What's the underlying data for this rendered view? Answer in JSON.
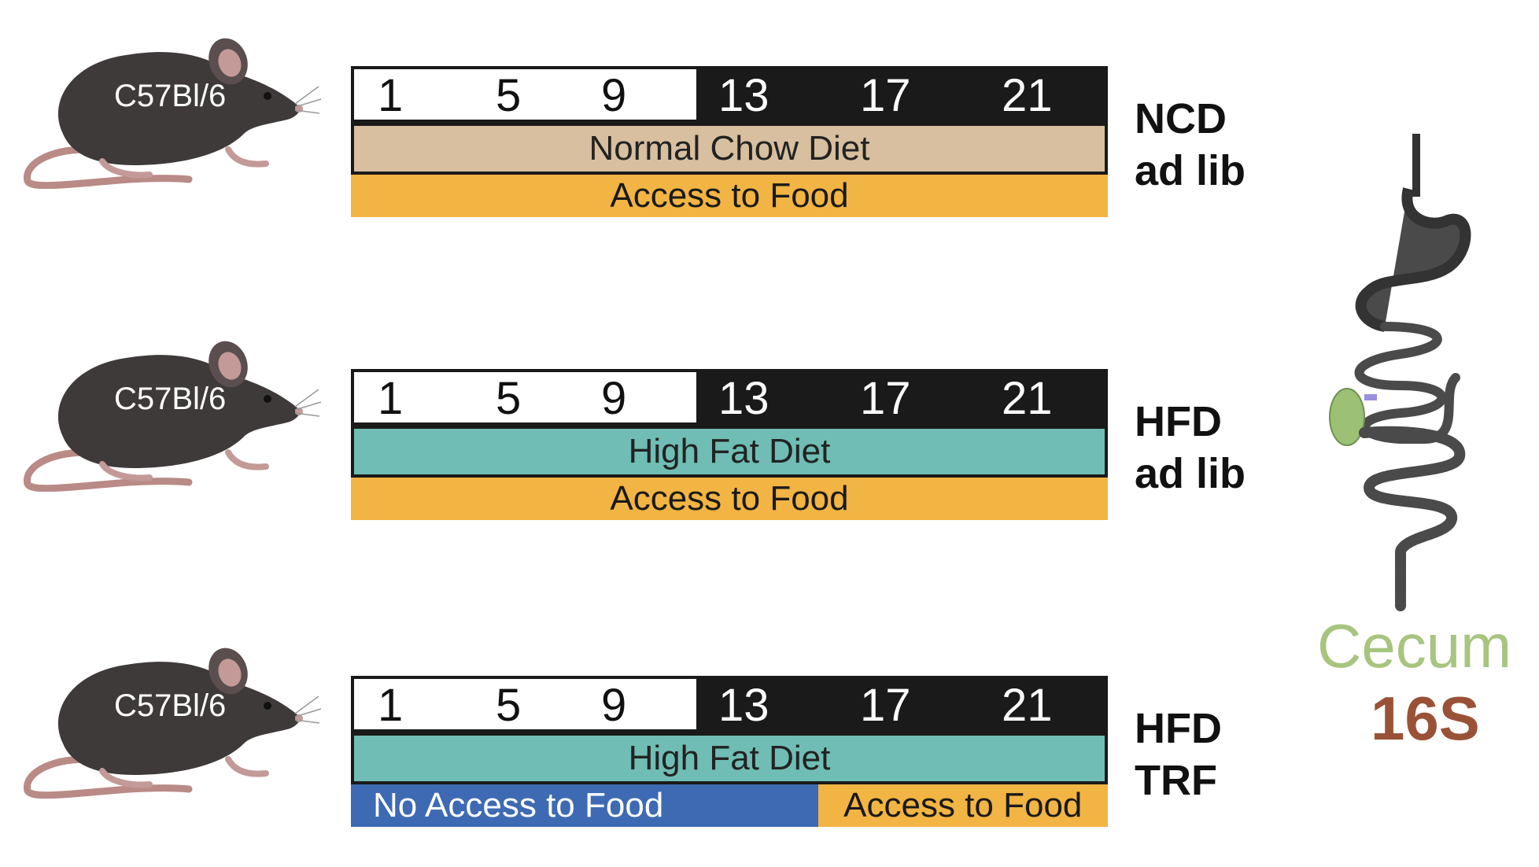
{
  "strain": "C57Bl/6",
  "hours": {
    "light": [
      "1",
      "5",
      "9"
    ],
    "dark": [
      "13",
      "17",
      "21"
    ]
  },
  "groups": [
    {
      "diet": "Normal Chow Diet",
      "access": "Access to Food",
      "label_line1": "NCD",
      "label_line2": "ad lib"
    },
    {
      "diet": "High Fat Diet",
      "access": "Access to Food",
      "label_line1": "HFD",
      "label_line2": "ad lib"
    },
    {
      "diet": "High Fat Diet",
      "no_access": "No Access to Food",
      "access": "Access to Food",
      "label_line1": "HFD",
      "label_line2": "TRF"
    }
  ],
  "sample": "Cecum",
  "assay": "16S",
  "colors": {
    "ncd": "#d7bf9f",
    "hfd": "#6fbdb4",
    "access": "#f2b443",
    "no_access": "#3d6ab3",
    "dark": "#1a1a1a",
    "cecum": "#a7c57f",
    "assay": "#9a5237",
    "mouse": "#3f3a3a"
  }
}
